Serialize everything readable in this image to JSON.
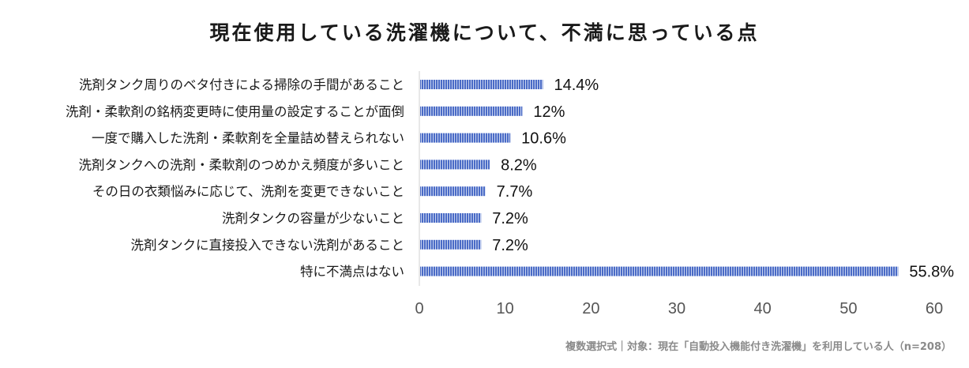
{
  "chart_data": {
    "type": "bar",
    "orientation": "horizontal",
    "title": "現在使用している洗濯機について、不満に思っている点",
    "categories": [
      "洗剤タンク周りのベタ付きによる掃除の手間があること",
      "洗剤・柔軟剤の銘柄変更時に使用量の設定することが面倒",
      "一度で購入した洗剤・柔軟剤を全量詰め替えられない",
      "洗剤タンクへの洗剤・柔軟剤のつめかえ頻度が多いこと",
      "その日の衣類悩みに応じて、洗剤を変更できないこと",
      "洗剤タンクの容量が少ないこと",
      "洗剤タンクに直接投入できない洗剤があること",
      "特に不満点はない"
    ],
    "values": [
      14.4,
      12,
      10.6,
      8.2,
      7.7,
      7.2,
      7.2,
      55.8
    ],
    "value_labels": [
      "14.4%",
      "12%",
      "10.6%",
      "8.2%",
      "7.7%",
      "7.2%",
      "7.2%",
      "55.8%"
    ],
    "xlim": [
      0,
      60
    ],
    "xticks": [
      "0",
      "10",
      "20",
      "30",
      "40",
      "50",
      "60"
    ],
    "grid": false,
    "bar_color": "#4a6bc6",
    "bar_stripe_color": "#c9d4f0"
  },
  "footnote": "複数選択式｜対象：現在「自動投入機能付き洗濯機」を利用している人（n=208）"
}
